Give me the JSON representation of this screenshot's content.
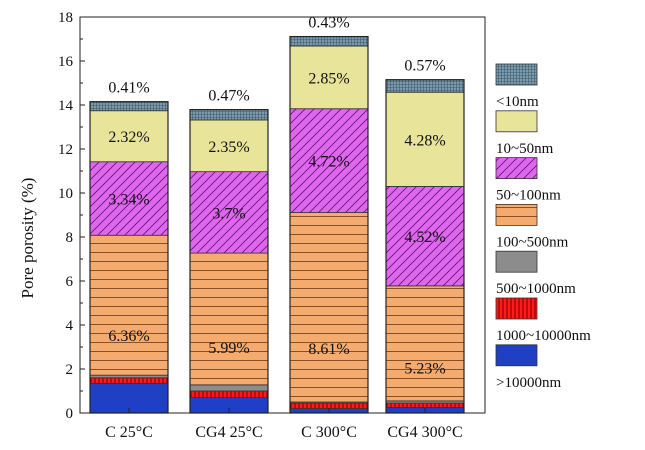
{
  "chart_data": {
    "type": "stacked-bar",
    "ylabel": "Pore porosity (%)",
    "ylim": [
      0,
      18
    ],
    "yticks": [
      0,
      2,
      4,
      6,
      8,
      10,
      12,
      14,
      16,
      18
    ],
    "categories": [
      "C 25°C",
      "CG4 25°C",
      "C 300°C",
      "CG4 300°C"
    ],
    "legend_position": "right",
    "series": [
      {
        "name": ">10000nm",
        "color": "#1f3fc4",
        "pattern": "solid",
        "values": [
          1.35,
          0.7,
          0.2,
          0.25
        ]
      },
      {
        "name": "1000~10000nm",
        "color": "#ff1a1a",
        "pattern": "vlines",
        "values": [
          0.25,
          0.3,
          0.25,
          0.2
        ]
      },
      {
        "name": "500~1000nm",
        "color": "#8c8c8c",
        "pattern": "solid",
        "values": [
          0.12,
          0.28,
          0.05,
          0.1
        ]
      },
      {
        "name": "100~500nm",
        "color": "#f5aa6e",
        "pattern": "hlines",
        "values": [
          6.36,
          5.99,
          8.61,
          5.23
        ]
      },
      {
        "name": "50~100nm",
        "color": "#e066f0",
        "pattern": "diag",
        "values": [
          3.34,
          3.7,
          4.72,
          4.52
        ]
      },
      {
        "name": "10~50nm",
        "color": "#e8e49a",
        "pattern": "solid",
        "values": [
          2.32,
          2.35,
          2.85,
          4.28
        ]
      },
      {
        "name": "<10nm",
        "color": "#7b9aab",
        "pattern": "grid",
        "values": [
          0.41,
          0.47,
          0.43,
          0.57
        ]
      }
    ],
    "segment_labels": {
      "100~500nm": [
        "6.36%",
        "5.99%",
        "8.61%",
        "5.23%"
      ],
      "50~100nm": [
        "3.34%",
        "3.7%",
        "4.72%",
        "4.52%"
      ],
      "10~50nm": [
        "2.32%",
        "2.35%",
        "2.85%",
        "4.28%"
      ],
      "<10nm": [
        "0.41%",
        "0.47%",
        "0.43%",
        "0.57%"
      ]
    }
  }
}
